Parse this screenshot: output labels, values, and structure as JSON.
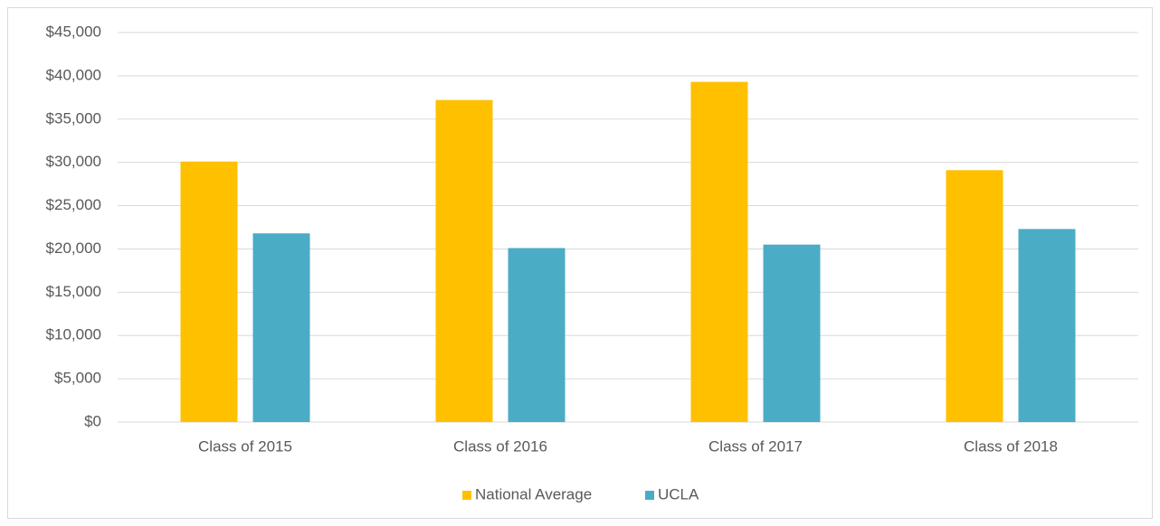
{
  "chart_data": {
    "type": "bar",
    "categories": [
      "Class of 2015",
      "Class of 2016",
      "Class of 2017",
      "Class of 2018"
    ],
    "series": [
      {
        "name": "National Average",
        "color": "#ffc000",
        "values": [
          30100,
          37200,
          39300,
          29100
        ]
      },
      {
        "name": "UCLA",
        "color": "#4bacc6",
        "values": [
          21800,
          20100,
          20500,
          22300
        ]
      }
    ],
    "ylim": [
      0,
      45000
    ],
    "yticks": [
      {
        "value": 0,
        "label": "$0"
      },
      {
        "value": 5000,
        "label": "$5,000"
      },
      {
        "value": 10000,
        "label": "$10,000"
      },
      {
        "value": 15000,
        "label": "$15,000"
      },
      {
        "value": 20000,
        "label": "$20,000"
      },
      {
        "value": 25000,
        "label": "$25,000"
      },
      {
        "value": 30000,
        "label": "$30,000"
      },
      {
        "value": 35000,
        "label": "$35,000"
      },
      {
        "value": 40000,
        "label": "$40,000"
      },
      {
        "value": 45000,
        "label": "$45,000"
      }
    ],
    "grid": true,
    "legend": "bottom"
  }
}
